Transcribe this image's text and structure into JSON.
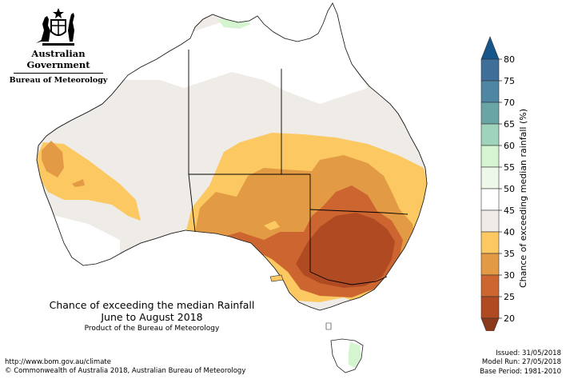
{
  "logo": {
    "government": "Australian Government",
    "bureau": "Bureau of Meteorology",
    "icon": "commonwealth-coat-of-arms-icon"
  },
  "title": {
    "line1": "Chance of exceeding the median Rainfall",
    "line2": "June to August 2018",
    "line3": "Product of the Bureau of Meteorology"
  },
  "legend": {
    "title": "Chance of exceeding median rainfall (%)",
    "ticks": [
      "80",
      "75",
      "70",
      "65",
      "60",
      "55",
      "50",
      "45",
      "40",
      "35",
      "30",
      "25",
      "20"
    ],
    "bands": [
      {
        "range": "75-80",
        "color": "#3d6f99"
      },
      {
        "range": "70-75",
        "color": "#4f86a4"
      },
      {
        "range": "65-70",
        "color": "#6aa5a6"
      },
      {
        "range": "60-65",
        "color": "#9fd3bb"
      },
      {
        "range": "55-60",
        "color": "#d4f5cf"
      },
      {
        "range": "50-55",
        "color": "#eef8ea"
      },
      {
        "range": "45-50",
        "color": "#ffffff"
      },
      {
        "range": "40-45",
        "color": "#efebe6"
      },
      {
        "range": "35-40",
        "color": "#fbc862"
      },
      {
        "range": "30-35",
        "color": "#e39a45"
      },
      {
        "range": "25-30",
        "color": "#cd6530"
      },
      {
        "range": "20-25",
        "color": "#b04a22"
      }
    ],
    "top_arrow_color": "#16568a",
    "bottom_arrow_color": "#8a3a1a"
  },
  "footer": {
    "url": "http://www.bom.gov.au/climate",
    "copyright": "© Commonwealth of Australia 2018, Australian Bureau of Meteorology",
    "issued": "Issued: 31/05/2018",
    "model_run": "Model Run: 27/05/2018",
    "base_period": "Base Period: 1981-2010"
  },
  "map": {
    "region": "Australia",
    "colors": {
      "land_neutral": "#ffffff",
      "below_45": "#efebe6",
      "below_40": "#fbc862",
      "below_35": "#e39a45",
      "below_30": "#cd6530",
      "below_25": "#b04a22",
      "above_55": "#d4f5cf",
      "border": "#000000"
    }
  }
}
